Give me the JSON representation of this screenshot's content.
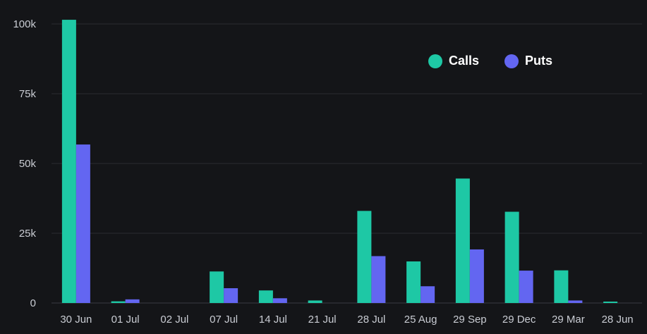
{
  "chart_data": {
    "type": "bar",
    "categories": [
      "30 Jun",
      "01 Jul",
      "02 Jul",
      "07 Jul",
      "14 Jul",
      "21 Jul",
      "28 Jul",
      "25 Aug",
      "29 Sep",
      "29 Dec",
      "29 Mar",
      "28 Jun"
    ],
    "series": [
      {
        "name": "Calls",
        "color": "#1ec8a5",
        "values": [
          101500,
          600,
          0,
          11300,
          4500,
          900,
          33000,
          14900,
          44600,
          32700,
          11700,
          500
        ]
      },
      {
        "name": "Puts",
        "color": "#6366f1",
        "values": [
          56800,
          1300,
          0,
          5300,
          1700,
          0,
          16800,
          6000,
          19200,
          11600,
          900,
          0
        ]
      }
    ],
    "y_ticks": [
      {
        "value": 0,
        "label": "0"
      },
      {
        "value": 25000,
        "label": "25k"
      },
      {
        "value": 50000,
        "label": "50k"
      },
      {
        "value": 75000,
        "label": "75k"
      },
      {
        "value": 100000,
        "label": "100k"
      }
    ],
    "ylim": [
      0,
      100000
    ],
    "grid": true,
    "legend_position": "top-right",
    "title": "",
    "xlabel": "",
    "ylabel": ""
  },
  "legend": {
    "calls_label": "Calls",
    "puts_label": "Puts"
  }
}
